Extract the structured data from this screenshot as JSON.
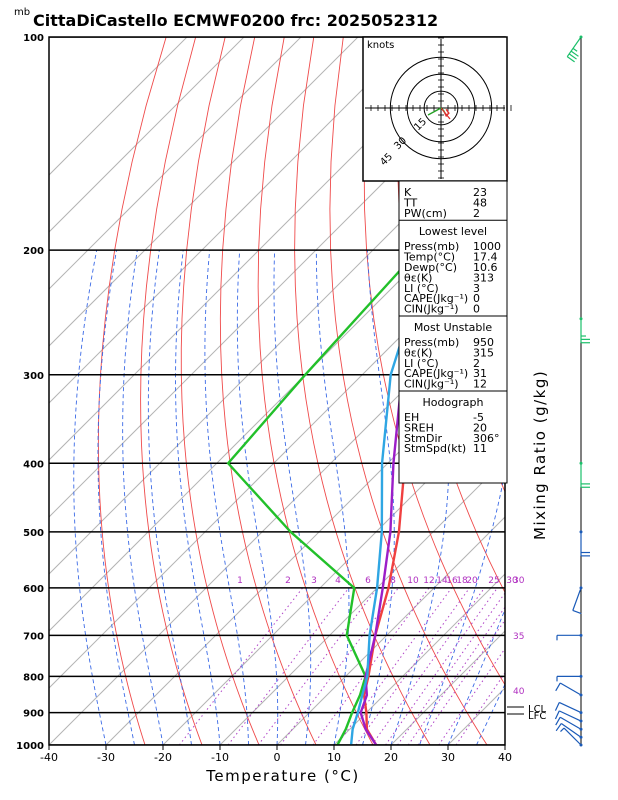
{
  "header": {
    "unit_label": "mb",
    "title": "CittaDiCastello ECMWF0200 frc: 2025052312"
  },
  "hodograph": {
    "unit": "knots",
    "ring_labels": [
      "15",
      "30",
      "45"
    ]
  },
  "indices": {
    "top": [
      {
        "name": "K",
        "value": "23"
      },
      {
        "name": "TT",
        "value": "48"
      },
      {
        "name": "PW(cm)",
        "value": "2"
      }
    ],
    "lowest_level": {
      "heading": "Lowest level",
      "rows": [
        {
          "name": "Press(mb)",
          "value": "1000"
        },
        {
          "name": "Temp(°C)",
          "value": "17.4"
        },
        {
          "name": "Dewp(°C)",
          "value": "10.6"
        },
        {
          "name": "θε(K)",
          "value": "313"
        },
        {
          "name": "LI (°C)",
          "value": "3"
        },
        {
          "name": "CAPE(Jkg⁻¹)",
          "value": "0"
        },
        {
          "name": "CIN(Jkg⁻¹)",
          "value": "0"
        }
      ]
    },
    "most_unstable": {
      "heading": "Most Unstable",
      "rows": [
        {
          "name": "Press(mb)",
          "value": "950"
        },
        {
          "name": "θε(K)",
          "value": "315"
        },
        {
          "name": "LI (°C)",
          "value": "2"
        },
        {
          "name": "CAPE(Jkg⁻¹)",
          "value": "31"
        },
        {
          "name": "CIN(Jkg⁻¹)",
          "value": "12"
        }
      ]
    },
    "hodograph_box": {
      "heading": "Hodograph",
      "rows": [
        {
          "name": "EH",
          "value": "-5"
        },
        {
          "name": "SREH",
          "value": "20"
        },
        {
          "name": "StmDir",
          "value": "306°"
        },
        {
          "name": "StmSpd(kt)",
          "value": "11"
        }
      ]
    }
  },
  "levels_side": {
    "lcl": "LCL",
    "lfc": "LFC"
  },
  "chart_data": {
    "type": "line",
    "title": "CittaDiCastello ECMWF0200 frc: 2025052312",
    "xlabel": "Temperature (°C)",
    "ylabel": "Mixing Ratio (g/kg)",
    "xlim": [
      -40,
      40
    ],
    "pressure_range": [
      1000,
      100
    ],
    "x_ticks": [
      "-40",
      "-30",
      "-20",
      "-10",
      "0",
      "10",
      "20",
      "30",
      "40"
    ],
    "pressure_ticks": [
      {
        "p": 100,
        "label": "100"
      },
      {
        "p": 200,
        "label": "200"
      },
      {
        "p": 300,
        "label": "300"
      },
      {
        "p": 400,
        "label": "400"
      },
      {
        "p": 500,
        "label": "500"
      },
      {
        "p": 600,
        "label": "600"
      },
      {
        "p": 700,
        "label": "700"
      },
      {
        "p": 800,
        "label": "800"
      },
      {
        "p": 900,
        "label": "900"
      },
      {
        "p": 1000,
        "label": "1000"
      }
    ],
    "mixing_ratio_labels": [
      "1",
      "2",
      "3",
      "4",
      "6",
      "8",
      "10",
      "12",
      "14",
      "16",
      "18",
      "20",
      "25",
      "30"
    ],
    "mixing_ratio_values": [
      1,
      2,
      3,
      4,
      6,
      8,
      10,
      12,
      14,
      16,
      18,
      20,
      25,
      30
    ],
    "theta_e_labels": [
      {
        "p": 600,
        "value": "30"
      },
      {
        "p": 700,
        "value": "35"
      },
      {
        "p": 850,
        "value": "40"
      }
    ],
    "series": [
      {
        "name": "Temperature",
        "color": "#f04040",
        "points": [
          [
            1000,
            17.4
          ],
          [
            950,
            13
          ],
          [
            900,
            10
          ],
          [
            850,
            6.5
          ],
          [
            800,
            4
          ],
          [
            700,
            -2
          ],
          [
            600,
            -8
          ],
          [
            500,
            -16
          ],
          [
            400,
            -27
          ],
          [
            300,
            -41
          ],
          [
            250,
            -51
          ],
          [
            200,
            -50
          ],
          [
            150,
            -50
          ],
          [
            100,
            -50
          ]
        ]
      },
      {
        "name": "Dew point",
        "color": "#22c02a",
        "points": [
          [
            1000,
            10.6
          ],
          [
            950,
            9.3
          ],
          [
            900,
            7.5
          ],
          [
            850,
            5.8
          ],
          [
            800,
            3.5
          ],
          [
            700,
            -7
          ],
          [
            600,
            -14
          ],
          [
            500,
            -35
          ],
          [
            400,
            -58
          ],
          [
            300,
            -60
          ],
          [
            200,
            -62
          ],
          [
            150,
            -62
          ],
          [
            100,
            -64
          ]
        ]
      },
      {
        "name": "Parcel",
        "color": "#9b1ec8",
        "points": [
          [
            1000,
            17.4
          ],
          [
            950,
            12.8
          ],
          [
            900,
            9.0
          ],
          [
            850,
            7
          ],
          [
            800,
            3.5
          ],
          [
            700,
            -2
          ],
          [
            600,
            -9
          ],
          [
            500,
            -17.5
          ],
          [
            400,
            -29
          ],
          [
            300,
            -43
          ],
          [
            200,
            -58
          ],
          [
            100,
            -75
          ]
        ]
      },
      {
        "name": "Wet-bulb",
        "color": "#2fa6e3",
        "points": [
          [
            1000,
            13
          ],
          [
            950,
            10.5
          ],
          [
            900,
            8.5
          ],
          [
            850,
            6.2
          ],
          [
            800,
            3.8
          ],
          [
            700,
            -3
          ],
          [
            600,
            -10
          ],
          [
            500,
            -19
          ],
          [
            400,
            -31
          ],
          [
            300,
            -45
          ],
          [
            200,
            -60
          ],
          [
            100,
            -77
          ]
        ]
      }
    ],
    "wind_barbs": [
      {
        "p": 1000,
        "dir": 315,
        "spd": 5
      },
      {
        "p": 975,
        "dir": 305,
        "spd": 10
      },
      {
        "p": 950,
        "dir": 300,
        "spd": 10
      },
      {
        "p": 925,
        "dir": 295,
        "spd": 10
      },
      {
        "p": 900,
        "dir": 295,
        "spd": 10
      },
      {
        "p": 850,
        "dir": 300,
        "spd": 10
      },
      {
        "p": 800,
        "dir": 270,
        "spd": 5
      },
      {
        "p": 700,
        "dir": 270,
        "spd": 5
      },
      {
        "p": 600,
        "dir": 200,
        "spd": 10
      },
      {
        "p": 500,
        "dir": 180,
        "spd": 20
      },
      {
        "p": 400,
        "dir": 180,
        "spd": 20
      },
      {
        "p": 250,
        "dir": 180,
        "spd": 25
      },
      {
        "p": 100,
        "dir": 215,
        "spd": 35
      }
    ],
    "hodograph_points": [
      [
        0,
        0
      ],
      [
        2,
        -2
      ],
      [
        3,
        -4
      ],
      [
        4,
        -6
      ],
      [
        6,
        -4
      ],
      [
        4,
        -1
      ]
    ],
    "grid": true
  }
}
